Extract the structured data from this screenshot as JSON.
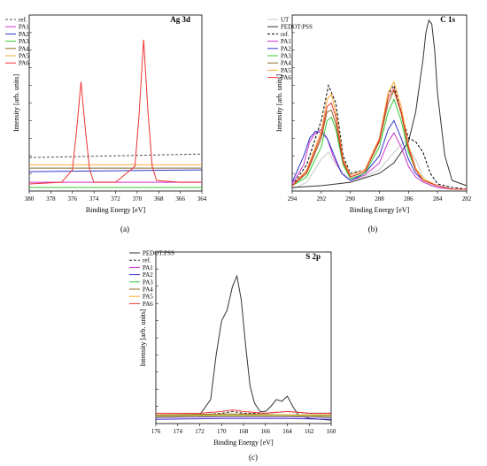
{
  "chart_data": [
    {
      "panel_label": "(a)",
      "title": "Ag 3d",
      "type": "line",
      "xlabel": "Binding Energy [eV]",
      "ylabel": "Intensity [arb. units]",
      "xlim": [
        380,
        364
      ],
      "ylim": [
        0,
        1
      ],
      "xticks": [
        380,
        378,
        376,
        374,
        372,
        370,
        368,
        366,
        364
      ],
      "legend_position": "top-left",
      "series": [
        {
          "name": "ref.",
          "color": "#555555",
          "dash": "3,2",
          "x": [
            380,
            364
          ],
          "y": [
            0.19,
            0.21
          ]
        },
        {
          "name": "PA1",
          "color": "#cc33cc",
          "x": [
            380,
            364
          ],
          "y": [
            0.05,
            0.05
          ]
        },
        {
          "name": "PA2",
          "color": "#3333cc",
          "x": [
            380,
            364
          ],
          "y": [
            0.11,
            0.12
          ]
        },
        {
          "name": "PA3",
          "color": "#33cc33",
          "x": [
            380,
            364
          ],
          "y": [
            0.02,
            0.02
          ]
        },
        {
          "name": "PA4",
          "color": "#8b6b2a",
          "x": [
            380,
            364
          ],
          "y": [
            0.13,
            0.13
          ]
        },
        {
          "name": "PA5",
          "color": "#ffaa33",
          "x": [
            380,
            364
          ],
          "y": [
            0.15,
            0.15
          ]
        },
        {
          "name": "PA6",
          "color": "#ee3333",
          "x": [
            380,
            377,
            376,
            375.6,
            375.2,
            374.8,
            374.4,
            374,
            372,
            370.2,
            369.8,
            369.4,
            369,
            368.6,
            368.2,
            366,
            364
          ],
          "y": [
            0.04,
            0.05,
            0.12,
            0.35,
            0.62,
            0.35,
            0.12,
            0.05,
            0.05,
            0.14,
            0.45,
            0.86,
            0.45,
            0.14,
            0.06,
            0.05,
            0.05
          ]
        }
      ]
    },
    {
      "panel_label": "(b)",
      "title": "C 1s",
      "type": "line",
      "xlabel": "Binding Energy [eV]",
      "ylabel": "Intensity [arb. units]",
      "xlim": [
        294,
        282
      ],
      "ylim": [
        0,
        1
      ],
      "xticks": [
        294,
        292,
        290,
        288,
        286,
        284,
        282
      ],
      "legend_position": "top-left",
      "series": [
        {
          "name": "UT",
          "color": "#c8c8c8",
          "x": [
            294,
            293,
            292,
            291.5,
            291,
            290,
            289,
            288,
            287,
            286.3,
            285.5,
            285,
            284.5,
            284,
            283,
            282
          ],
          "y": [
            0.01,
            0.05,
            0.18,
            0.22,
            0.15,
            0.06,
            0.08,
            0.12,
            0.22,
            0.28,
            0.18,
            0.08,
            0.03,
            0.02,
            0.01,
            0.01
          ]
        },
        {
          "name": "PEDOT:PSS",
          "color": "#333333",
          "x": [
            294,
            292,
            290,
            288,
            287,
            286,
            285.5,
            285,
            284.8,
            284.6,
            284.4,
            284.2,
            284,
            283.5,
            283,
            282
          ],
          "y": [
            0.02,
            0.03,
            0.05,
            0.1,
            0.16,
            0.28,
            0.45,
            0.75,
            0.9,
            0.97,
            0.95,
            0.8,
            0.55,
            0.2,
            0.06,
            0.03
          ]
        },
        {
          "name": "ref.",
          "color": "#000000",
          "dash": "3,2",
          "x": [
            294,
            293,
            292,
            291.5,
            291,
            290.5,
            290,
            289,
            288,
            287.4,
            287,
            286.5,
            286,
            285.5,
            285,
            284.5,
            284,
            283,
            282
          ],
          "y": [
            0.03,
            0.15,
            0.4,
            0.6,
            0.5,
            0.2,
            0.1,
            0.12,
            0.3,
            0.55,
            0.6,
            0.45,
            0.3,
            0.28,
            0.22,
            0.1,
            0.04,
            0.02,
            0.01
          ]
        },
        {
          "name": "PA1",
          "color": "#cc33cc",
          "x": [
            294,
            293.2,
            292.8,
            292.4,
            292,
            291.6,
            291.2,
            290.6,
            290,
            289,
            288,
            287.4,
            287,
            286.5,
            286,
            285.5,
            285,
            284,
            283,
            282
          ],
          "y": [
            0.04,
            0.15,
            0.28,
            0.33,
            0.35,
            0.3,
            0.2,
            0.1,
            0.06,
            0.09,
            0.16,
            0.28,
            0.33,
            0.25,
            0.14,
            0.08,
            0.05,
            0.02,
            0.01,
            0.01
          ]
        },
        {
          "name": "PA2",
          "color": "#3333cc",
          "x": [
            294,
            293.2,
            292.8,
            292.4,
            292,
            291.6,
            291.2,
            290.6,
            290,
            289,
            288,
            287.4,
            287,
            286.5,
            286,
            285.5,
            285,
            284,
            283,
            282
          ],
          "y": [
            0.05,
            0.2,
            0.3,
            0.34,
            0.33,
            0.3,
            0.22,
            0.1,
            0.06,
            0.1,
            0.2,
            0.35,
            0.4,
            0.3,
            0.18,
            0.1,
            0.06,
            0.03,
            0.01,
            0.01
          ]
        },
        {
          "name": "PA3",
          "color": "#33cc33",
          "x": [
            294,
            293,
            292,
            291.6,
            291.3,
            291,
            290.5,
            290,
            289,
            288,
            287.4,
            287,
            286.5,
            286,
            285.5,
            285,
            284,
            283,
            282
          ],
          "y": [
            0.03,
            0.08,
            0.25,
            0.4,
            0.42,
            0.35,
            0.15,
            0.07,
            0.1,
            0.25,
            0.45,
            0.52,
            0.4,
            0.22,
            0.12,
            0.06,
            0.03,
            0.01,
            0.01
          ]
        },
        {
          "name": "PA4",
          "color": "#8b6b2a",
          "x": [
            294,
            293,
            292,
            291.6,
            291.3,
            291,
            290.5,
            290,
            289,
            288,
            287.4,
            287,
            286.5,
            286,
            285.5,
            285,
            284,
            283,
            282
          ],
          "y": [
            0.03,
            0.1,
            0.3,
            0.45,
            0.46,
            0.38,
            0.16,
            0.08,
            0.11,
            0.28,
            0.5,
            0.57,
            0.44,
            0.24,
            0.12,
            0.06,
            0.03,
            0.01,
            0.01
          ]
        },
        {
          "name": "PA5",
          "color": "#ffaa33",
          "x": [
            294,
            293,
            292,
            291.6,
            291.3,
            291,
            290.5,
            290,
            289,
            288,
            287.4,
            287,
            286.5,
            286,
            285.5,
            285,
            284,
            283,
            282
          ],
          "y": [
            0.03,
            0.12,
            0.34,
            0.52,
            0.55,
            0.45,
            0.18,
            0.09,
            0.12,
            0.3,
            0.56,
            0.62,
            0.48,
            0.26,
            0.13,
            0.07,
            0.03,
            0.01,
            0.01
          ]
        },
        {
          "name": "PA6",
          "color": "#ee3333",
          "x": [
            294,
            293,
            292,
            291.6,
            291.3,
            291,
            290.5,
            290,
            289,
            288,
            287.4,
            287,
            286.5,
            286,
            285.5,
            285,
            284,
            283,
            282
          ],
          "y": [
            0.03,
            0.11,
            0.32,
            0.48,
            0.5,
            0.42,
            0.17,
            0.08,
            0.11,
            0.29,
            0.53,
            0.58,
            0.45,
            0.25,
            0.12,
            0.06,
            0.03,
            0.01,
            0.01
          ]
        }
      ]
    },
    {
      "panel_label": "(c)",
      "title": "S 2p",
      "type": "line",
      "xlabel": "Binding Energy [eV]",
      "ylabel": "Intensity [arb. units]",
      "xlim": [
        176,
        160
      ],
      "ylim": [
        0,
        1
      ],
      "xticks": [
        176,
        174,
        172,
        170,
        168,
        166,
        164,
        162,
        160
      ],
      "legend_position": "top-left",
      "series": [
        {
          "name": "PEDOT:PSS",
          "color": "#333333",
          "x": [
            176,
            172,
            171,
            170.5,
            170,
            169.5,
            169,
            168.6,
            168.2,
            167.8,
            167.4,
            167,
            166.5,
            166,
            165.5,
            165,
            164.5,
            164,
            163.5,
            163,
            162,
            160
          ],
          "y": [
            0.04,
            0.05,
            0.14,
            0.4,
            0.6,
            0.66,
            0.8,
            0.86,
            0.72,
            0.45,
            0.22,
            0.12,
            0.07,
            0.07,
            0.1,
            0.14,
            0.13,
            0.16,
            0.1,
            0.05,
            0.03,
            0.02
          ]
        },
        {
          "name": "ref.",
          "color": "#222222",
          "dash": "3,2",
          "x": [
            176,
            172,
            170,
            169,
            168,
            166,
            164,
            162,
            160
          ],
          "y": [
            0.05,
            0.05,
            0.06,
            0.07,
            0.06,
            0.06,
            0.07,
            0.06,
            0.06
          ]
        },
        {
          "name": "PA1",
          "color": "#cc33cc",
          "x": [
            176,
            170,
            168,
            164,
            160
          ],
          "y": [
            0.035,
            0.04,
            0.04,
            0.04,
            0.035
          ]
        },
        {
          "name": "PA2",
          "color": "#3333cc",
          "x": [
            176,
            170,
            168,
            164,
            160
          ],
          "y": [
            0.025,
            0.03,
            0.03,
            0.03,
            0.025
          ]
        },
        {
          "name": "PA3",
          "color": "#33cc33",
          "x": [
            176,
            170,
            168,
            164,
            160
          ],
          "y": [
            0.04,
            0.045,
            0.045,
            0.045,
            0.04
          ]
        },
        {
          "name": "PA4",
          "color": "#8b6b2a",
          "x": [
            176,
            170,
            168,
            164,
            160
          ],
          "y": [
            0.05,
            0.055,
            0.055,
            0.05,
            0.05
          ]
        },
        {
          "name": "PA5",
          "color": "#ffaa33",
          "x": [
            176,
            170,
            168,
            164,
            160
          ],
          "y": [
            0.045,
            0.05,
            0.05,
            0.05,
            0.045
          ]
        },
        {
          "name": "PA6",
          "color": "#ee3333",
          "x": [
            176,
            172,
            170,
            169,
            168,
            166,
            164,
            162,
            160
          ],
          "y": [
            0.06,
            0.06,
            0.07,
            0.08,
            0.07,
            0.06,
            0.07,
            0.06,
            0.06
          ]
        }
      ]
    }
  ]
}
